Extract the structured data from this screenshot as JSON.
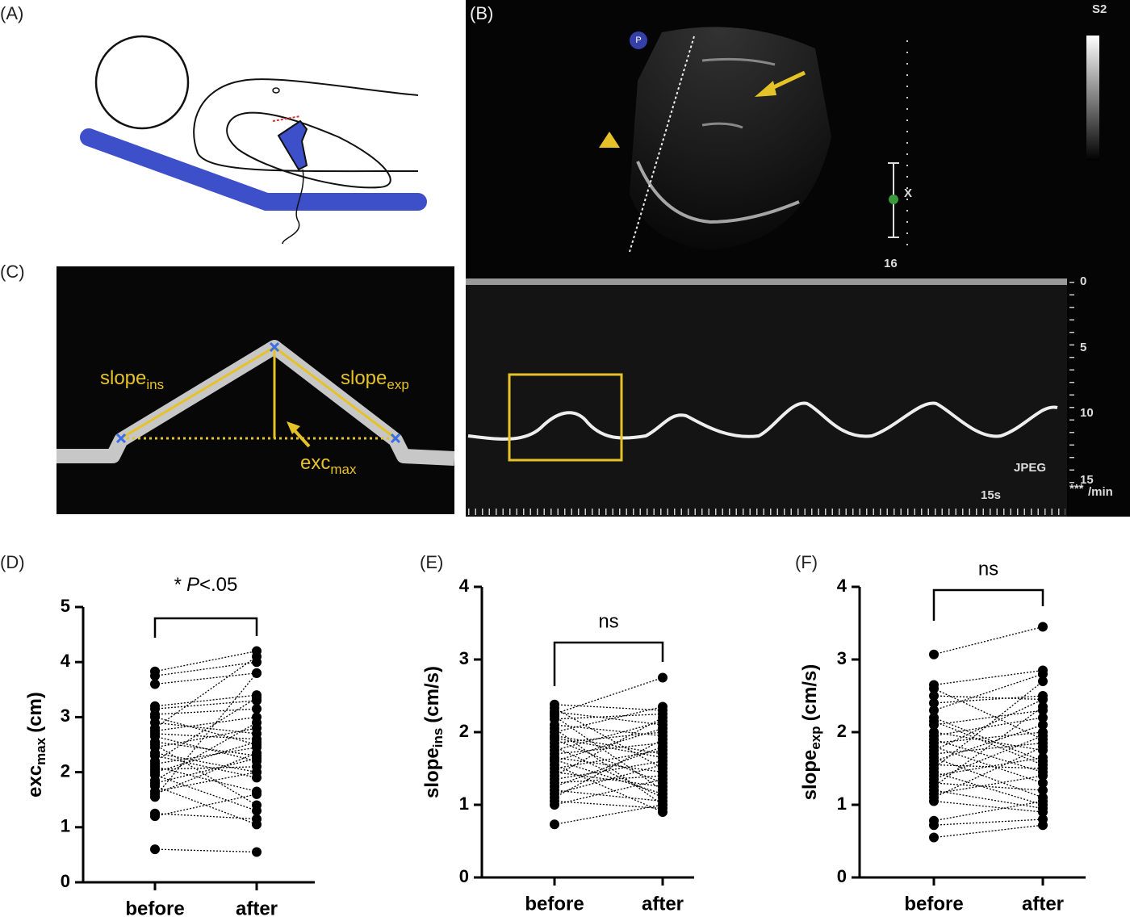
{
  "panels": {
    "A": {
      "label": "(A)"
    },
    "B": {
      "label": "(B)",
      "probe_marker": "P",
      "preset": "S2",
      "depth": 16,
      "cursor": "X",
      "depth_ticks": [
        0,
        5,
        10,
        15
      ],
      "format": "JPEG",
      "sweep": "15s",
      "rate_stars": "***",
      "rate_unit": "/min"
    },
    "C": {
      "label": "(C)",
      "slope_ins": "slope",
      "slope_ins_sub": "ins",
      "slope_exp": "slope",
      "slope_exp_sub": "exp",
      "exc": "exc",
      "exc_sub": "max"
    }
  },
  "chart_data": [
    {
      "type": "paired",
      "panel_label": "(D)",
      "color": "#000000",
      "y_label": {
        "main": "exc",
        "sub": "max",
        "unit": "(cm)"
      },
      "annotation": {
        "prefix": "*",
        "italic": "P",
        "rest": "<.05"
      },
      "categories": [
        "before",
        "after"
      ],
      "ylim": [
        0,
        5
      ],
      "yticks": [
        0,
        1,
        2,
        3,
        4,
        5
      ],
      "values": [
        [
          3.83,
          4.2
        ],
        [
          3.75,
          4.0
        ],
        [
          3.6,
          3.8
        ],
        [
          3.2,
          3.4
        ],
        [
          3.15,
          3.3
        ],
        [
          3.05,
          3.15
        ],
        [
          3.0,
          2.5
        ],
        [
          2.9,
          2.7
        ],
        [
          2.8,
          4.1
        ],
        [
          2.75,
          3.0
        ],
        [
          2.7,
          2.6
        ],
        [
          2.65,
          2.2
        ],
        [
          2.55,
          2.3
        ],
        [
          2.5,
          1.4
        ],
        [
          2.45,
          2.8
        ],
        [
          2.35,
          2.0
        ],
        [
          2.3,
          1.9
        ],
        [
          2.2,
          3.35
        ],
        [
          2.15,
          2.45
        ],
        [
          2.1,
          1.65
        ],
        [
          2.05,
          2.1
        ],
        [
          2.0,
          2.55
        ],
        [
          1.95,
          1.3
        ],
        [
          1.85,
          2.9
        ],
        [
          1.8,
          2.25
        ],
        [
          1.75,
          1.05
        ],
        [
          1.65,
          2.0
        ],
        [
          1.6,
          2.35
        ],
        [
          1.55,
          3.8
        ],
        [
          1.25,
          1.15
        ],
        [
          1.2,
          1.6
        ],
        [
          0.6,
          0.55
        ]
      ]
    },
    {
      "type": "paired",
      "panel_label": "(E)",
      "color": "#000000",
      "y_label": {
        "main": "slope",
        "sub": "ins",
        "unit": "(cm/s)"
      },
      "annotation": "ns",
      "categories": [
        "before",
        "after"
      ],
      "ylim": [
        0,
        4
      ],
      "yticks": [
        0,
        1,
        2,
        3,
        4
      ],
      "values": [
        [
          2.38,
          2.3
        ],
        [
          2.33,
          1.5
        ],
        [
          2.28,
          2.1
        ],
        [
          2.22,
          1.2
        ],
        [
          2.18,
          2.25
        ],
        [
          2.1,
          1.95
        ],
        [
          2.05,
          1.0
        ],
        [
          2.0,
          2.35
        ],
        [
          1.95,
          1.7
        ],
        [
          1.9,
          1.3
        ],
        [
          1.85,
          2.0
        ],
        [
          1.8,
          1.1
        ],
        [
          1.75,
          2.15
        ],
        [
          1.7,
          1.85
        ],
        [
          1.65,
          1.45
        ],
        [
          1.6,
          2.05
        ],
        [
          1.55,
          0.9
        ],
        [
          1.5,
          1.75
        ],
        [
          1.45,
          1.25
        ],
        [
          1.4,
          2.2
        ],
        [
          1.35,
          1.6
        ],
        [
          1.3,
          1.4
        ],
        [
          1.25,
          1.8
        ],
        [
          1.2,
          1.05
        ],
        [
          1.15,
          1.55
        ],
        [
          1.1,
          1.9
        ],
        [
          1.05,
          0.95
        ],
        [
          1.0,
          1.35
        ],
        [
          0.73,
          1.0
        ],
        [
          2.25,
          2.75
        ],
        [
          1.92,
          1.65
        ],
        [
          1.62,
          1.15
        ]
      ]
    },
    {
      "type": "paired",
      "panel_label": "(F)",
      "color": "#000000",
      "y_label": {
        "main": "slope",
        "sub": "exp",
        "unit": "(cm/s)"
      },
      "annotation": "ns",
      "categories": [
        "before",
        "after"
      ],
      "ylim": [
        0,
        4
      ],
      "yticks": [
        0,
        1,
        2,
        3,
        4
      ],
      "values": [
        [
          3.07,
          3.45
        ],
        [
          2.65,
          2.85
        ],
        [
          2.6,
          1.9
        ],
        [
          2.5,
          2.45
        ],
        [
          2.3,
          2.8
        ],
        [
          2.2,
          1.6
        ],
        [
          2.1,
          2.3
        ],
        [
          2.0,
          1.75
        ],
        [
          1.95,
          2.2
        ],
        [
          1.9,
          1.45
        ],
        [
          1.85,
          2.0
        ],
        [
          1.8,
          1.3
        ],
        [
          1.75,
          2.45
        ],
        [
          1.7,
          1.85
        ],
        [
          1.65,
          1.1
        ],
        [
          1.6,
          2.1
        ],
        [
          1.55,
          1.5
        ],
        [
          1.5,
          2.7
        ],
        [
          1.45,
          1.0
        ],
        [
          1.4,
          1.65
        ],
        [
          1.35,
          1.95
        ],
        [
          1.3,
          1.2
        ],
        [
          1.25,
          2.35
        ],
        [
          1.2,
          0.95
        ],
        [
          1.15,
          1.4
        ],
        [
          1.1,
          1.8
        ],
        [
          1.05,
          0.9
        ],
        [
          0.78,
          1.05
        ],
        [
          0.72,
          0.8
        ],
        [
          0.55,
          0.72
        ],
        [
          2.4,
          2.5
        ],
        [
          2.15,
          1.55
        ]
      ]
    }
  ]
}
